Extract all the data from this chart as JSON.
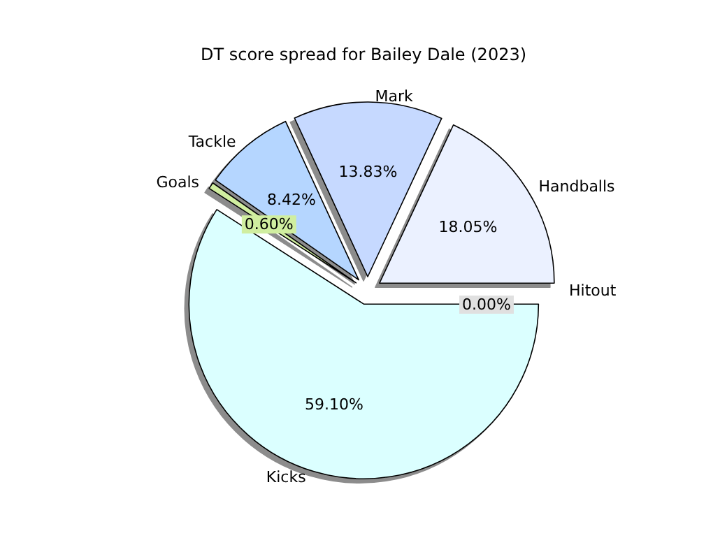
{
  "chart_data": {
    "type": "pie",
    "title": "DT score spread for Bailey Dale (2023)",
    "categories": [
      "Hitout",
      "Handballs",
      "Mark",
      "Tackle",
      "Goals",
      "Kicks"
    ],
    "values": [
      0.0,
      18.05,
      13.83,
      8.42,
      0.6,
      59.1
    ],
    "value_labels": [
      "0.00%",
      "18.05%",
      "13.83%",
      "8.42%",
      "0.60%",
      "59.10%"
    ],
    "colors": [
      "#e0e0e0",
      "#ebf1ff",
      "#c6d9ff",
      "#b5d6ff",
      "#d0eea0",
      "#dbffff"
    ],
    "legend": false
  }
}
